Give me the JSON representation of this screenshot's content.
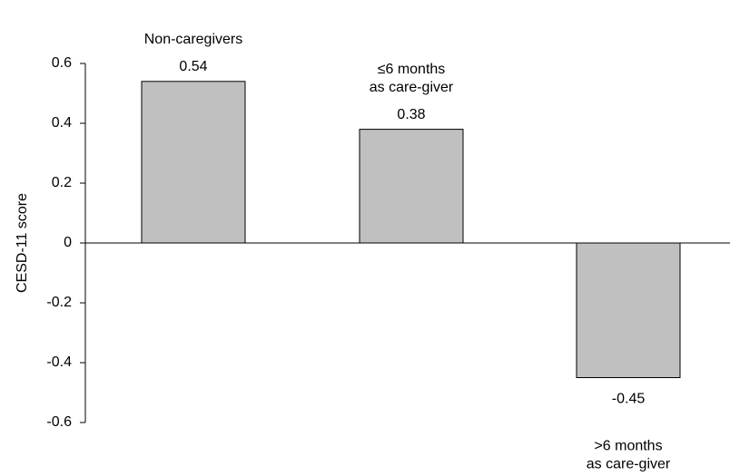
{
  "chart_data": {
    "type": "bar",
    "categories": [
      [
        "Non-caregivers"
      ],
      [
        "≤6 months",
        "as care-giver"
      ],
      [
        ">6 months",
        "as care-giver"
      ]
    ],
    "values": [
      0.54,
      0.38,
      -0.45
    ],
    "data_labels": [
      "0.54",
      "0.38",
      "-0.45"
    ],
    "title": "",
    "xlabel": "",
    "ylabel": "CESD-11 score",
    "ylim": [
      -0.6,
      0.6
    ],
    "yticks": [
      0.6,
      0.4,
      0.2,
      0,
      -0.2,
      -0.4,
      -0.6
    ],
    "ytick_labels": [
      "0.6",
      "0.4",
      "0.2",
      "0",
      "-0.2",
      "-0.4",
      "-0.6"
    ],
    "grid": false,
    "legend": "none",
    "bar_color": "#c0c0c0",
    "edge_color": "#000000"
  }
}
